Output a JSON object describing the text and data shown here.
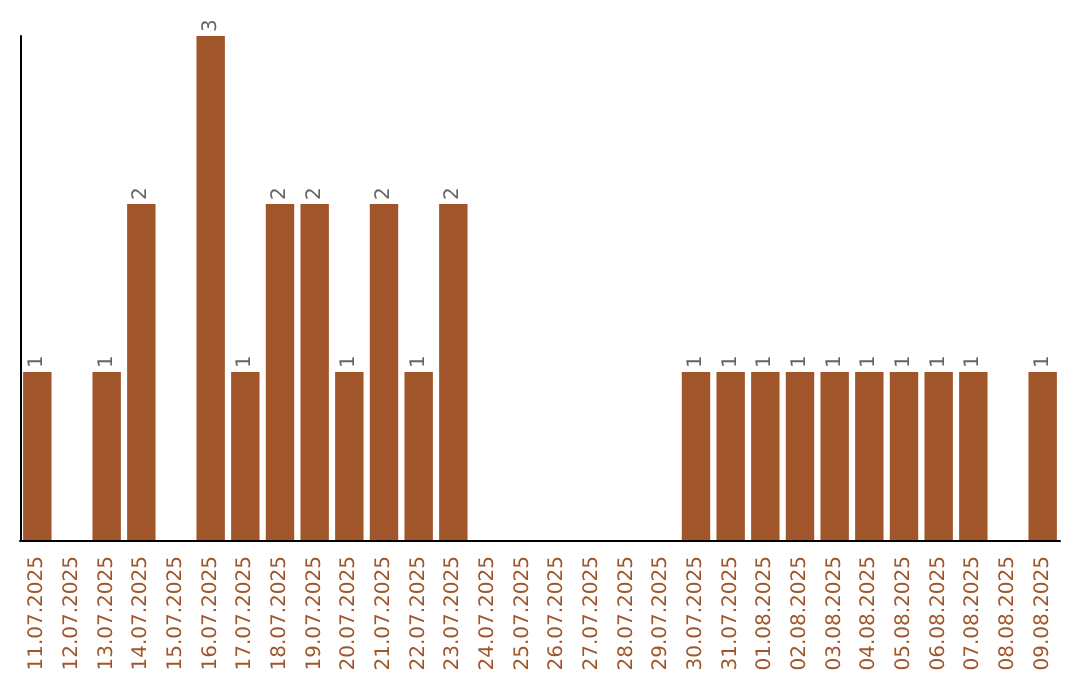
{
  "chart_data": {
    "type": "bar",
    "categories": [
      "11.07.2025",
      "12.07.2025",
      "13.07.2025",
      "14.07.2025",
      "15.07.2025",
      "16.07.2025",
      "17.07.2025",
      "18.07.2025",
      "19.07.2025",
      "20.07.2025",
      "21.07.2025",
      "22.07.2025",
      "23.07.2025",
      "24.07.2025",
      "25.07.2025",
      "26.07.2025",
      "27.07.2025",
      "28.07.2025",
      "29.07.2025",
      "30.07.2025",
      "31.07.2025",
      "01.08.2025",
      "02.08.2025",
      "03.08.2025",
      "04.08.2025",
      "05.08.2025",
      "06.08.2025",
      "07.08.2025",
      "08.08.2025",
      "09.08.2025"
    ],
    "values": [
      1,
      0,
      1,
      2,
      0,
      3,
      1,
      2,
      2,
      1,
      2,
      1,
      2,
      0,
      0,
      0,
      0,
      0,
      0,
      1,
      1,
      1,
      1,
      1,
      1,
      1,
      1,
      1,
      0,
      1
    ],
    "value_labels": [
      "1",
      null,
      "1",
      "2",
      null,
      "3",
      "1",
      "2",
      "2",
      "1",
      "2",
      "1",
      "2",
      null,
      null,
      null,
      null,
      null,
      null,
      "1",
      "1",
      "1",
      "1",
      "1",
      "1",
      "1",
      "1",
      "1",
      null,
      "1"
    ],
    "color": "#a0562a",
    "grid": false,
    "tick_labels": "x"
  }
}
